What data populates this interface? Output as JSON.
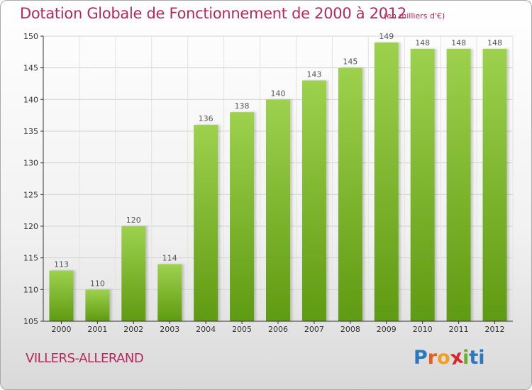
{
  "header": {
    "title": "Dotation Globale de Fonctionnement de 2000 à 2012",
    "units": "(en milliers d'€)"
  },
  "footer": {
    "place": "VILLERS-ALLERAND",
    "logo_letters": [
      "P",
      "r",
      "o",
      "x",
      "i",
      "t",
      "i"
    ],
    "logo_colors": [
      "#2a78c2",
      "#e85d1a",
      "#f0a01e",
      "#d8262e",
      "#6aae2a",
      "#2a78c2",
      "#2a78c2"
    ]
  },
  "chart_data": {
    "type": "bar",
    "title": "Dotation Globale de Fonctionnement de 2000 à 2012",
    "xlabel": "",
    "ylabel": "",
    "categories": [
      "2000",
      "2001",
      "2002",
      "2003",
      "2004",
      "2005",
      "2006",
      "2007",
      "2008",
      "2009",
      "2010",
      "2011",
      "2012"
    ],
    "values": [
      113,
      110,
      120,
      114,
      136,
      138,
      140,
      143,
      145,
      149,
      148,
      148,
      148
    ],
    "ylim": [
      105,
      150
    ],
    "yticks": [
      105,
      110,
      115,
      120,
      125,
      130,
      135,
      140,
      145,
      150
    ],
    "grid": true,
    "colors": {
      "bar_top": "#9dd14e",
      "bar_bottom": "#5f9a12",
      "label": "#555555",
      "axis": "#333333"
    }
  }
}
